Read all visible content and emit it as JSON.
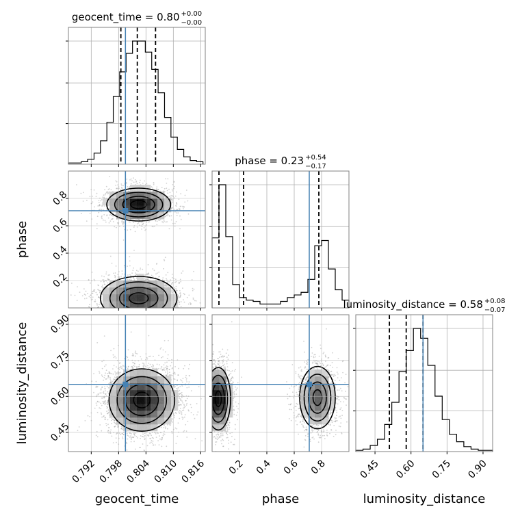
{
  "chart_data": {
    "type": "corner",
    "parameters": [
      {
        "name": "geocent_time",
        "label": "geocent_time",
        "range": [
          0.787,
          0.817
        ],
        "ticks": [
          0.792,
          0.798,
          0.804,
          0.81,
          0.816
        ],
        "tick_labels": [
          "0.792",
          "0.798",
          "0.804",
          "0.810",
          "0.816"
        ],
        "truth": 0.7995,
        "quantiles": [
          0.7985,
          0.8021,
          0.8061
        ],
        "title": {
          "main": "geocent_time = 0.80",
          "sup": "+0.00",
          "sub": "−0.00"
        },
        "hist_edges": [
          0.787,
          0.8165
        ],
        "hist_counts": [
          1,
          1,
          2,
          4,
          9,
          19,
          34,
          55,
          75,
          90,
          100,
          100,
          91,
          77,
          58,
          38,
          22,
          12,
          6,
          3,
          2
        ]
      },
      {
        "name": "phase",
        "label": "phase",
        "range": [
          0.0,
          1.0
        ],
        "ticks": [
          0.2,
          0.4,
          0.6,
          0.8
        ],
        "tick_labels": [
          "0.2",
          "0.4",
          "0.6",
          "0.8"
        ],
        "truth": 0.71,
        "quantiles": [
          0.05,
          0.23,
          0.78
        ],
        "title": {
          "main": "phase = 0.23",
          "sup": "+0.54",
          "sub": "−0.17"
        },
        "hist_edges": [
          0.0,
          1.0
        ],
        "hist_counts": [
          54,
          95,
          55,
          18,
          8,
          6,
          5,
          3,
          3,
          3,
          5,
          8,
          10,
          12,
          22,
          48,
          52,
          30,
          14,
          6
        ]
      },
      {
        "name": "luminosity_distance",
        "label": "luminosity_distance",
        "range": [
          0.37,
          0.94
        ],
        "ticks": [
          0.45,
          0.6,
          0.75,
          0.9
        ],
        "tick_labels": [
          "0.45",
          "0.60",
          "0.75",
          "0.90"
        ],
        "truth": 0.65,
        "quantiles": [
          0.51,
          0.58,
          0.65
        ],
        "title": {
          "main": "luminosity_distance = 0.58",
          "sup": "+0.08",
          "sub": "−0.07"
        },
        "hist_edges": [
          0.37,
          0.94
        ],
        "hist_counts": [
          1,
          2,
          5,
          10,
          22,
          40,
          65,
          82,
          100,
          92,
          70,
          45,
          26,
          14,
          8,
          4,
          2,
          1,
          1
        ]
      }
    ],
    "pairs": [
      {
        "x": "geocent_time",
        "y": "phase",
        "modes": [
          {
            "cx": 0.8024,
            "cy": 0.755,
            "sx": 0.0035,
            "sy": 0.06,
            "w": 0.45
          },
          {
            "cx": 0.8024,
            "cy": 0.07,
            "sx": 0.0042,
            "sy": 0.08,
            "w": 0.55
          }
        ]
      },
      {
        "x": "geocent_time",
        "y": "luminosity_distance",
        "modes": [
          {
            "cx": 0.8031,
            "cy": 0.585,
            "sx": 0.0036,
            "sy": 0.065,
            "w": 1.0
          }
        ]
      },
      {
        "x": "phase",
        "y": "luminosity_distance",
        "modes": [
          {
            "cx": 0.045,
            "cy": 0.59,
            "sx": 0.045,
            "sy": 0.065,
            "w": 0.55
          },
          {
            "cx": 0.77,
            "cy": 0.595,
            "sx": 0.065,
            "sy": 0.065,
            "w": 0.45
          }
        ]
      }
    ],
    "truth_color": "#4682b4",
    "grid": true
  }
}
